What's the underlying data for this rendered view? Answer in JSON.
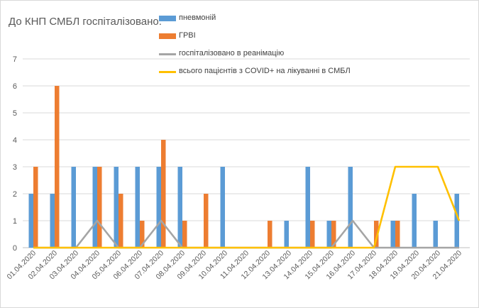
{
  "title": "До КНП СМБЛ госпіталізовано:",
  "colors": {
    "pneumonia": "#5b9bd5",
    "grvi": "#ed7d31",
    "icu": "#a5a5a5",
    "covid": "#ffc000",
    "grid": "#d9d9d9",
    "axis_text": "#595959"
  },
  "chart_data": {
    "type": "bar",
    "categories": [
      "01.04.2020",
      "02.04.2020",
      "03.04.2020",
      "04.04.2020",
      "05.04.2020",
      "06.04.2020",
      "07.04.2020",
      "08.04.2020",
      "09.04.2020",
      "10.04.2020",
      "11.04.2020",
      "12.04.2020",
      "13.04.2020",
      "14.04.2020",
      "15.04.2020",
      "16.04.2020",
      "17.04.2020",
      "18.04.2020",
      "19.04.2020",
      "20.04.2020",
      "21.04.2020"
    ],
    "series": [
      {
        "name": "пневмоній",
        "type": "bar",
        "color": "#5b9bd5",
        "values": [
          2,
          2,
          3,
          3,
          3,
          3,
          3,
          3,
          0,
          3,
          0,
          0,
          1,
          3,
          1,
          3,
          0,
          1,
          2,
          1,
          2
        ]
      },
      {
        "name": "ГРВІ",
        "type": "bar",
        "color": "#ed7d31",
        "values": [
          3,
          6,
          0,
          3,
          2,
          1,
          4,
          1,
          2,
          0,
          0,
          1,
          0,
          1,
          1,
          0,
          1,
          1,
          0,
          0,
          0
        ]
      },
      {
        "name": "госпіталізовано в реанімацію",
        "type": "line",
        "color": "#a5a5a5",
        "values": [
          0,
          0,
          0,
          1,
          0,
          0,
          1,
          0,
          0,
          0,
          0,
          0,
          0,
          0,
          0,
          1,
          0,
          0,
          0,
          0,
          0
        ]
      },
      {
        "name": "всього пацієнтів з COVID+ на лікуванні в СМБЛ",
        "type": "line",
        "color": "#ffc000",
        "values": [
          0,
          0,
          0,
          0,
          0,
          0,
          0,
          0,
          0,
          0,
          0,
          0,
          0,
          0,
          0,
          0,
          0,
          3,
          3,
          3,
          1
        ]
      }
    ],
    "ylim": [
      0,
      7
    ],
    "yticks": [
      "0",
      "1",
      "2",
      "3",
      "4",
      "5",
      "6",
      "7"
    ],
    "grid": true,
    "legend": "top"
  }
}
